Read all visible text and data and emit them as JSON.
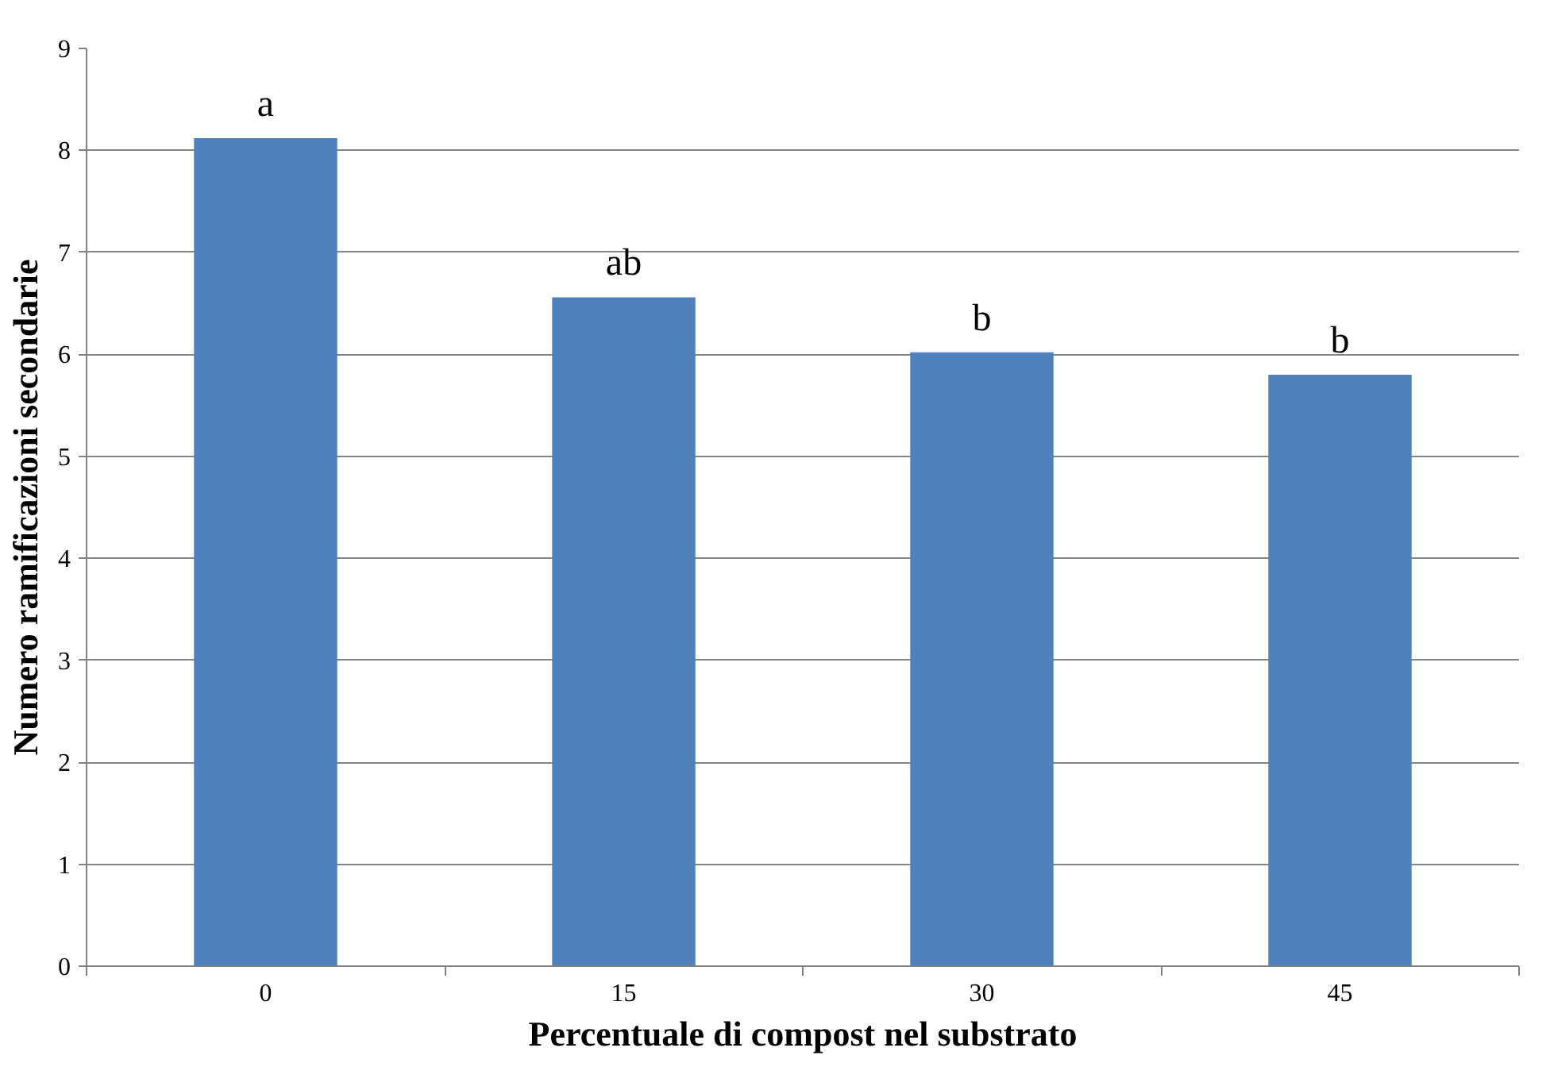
{
  "chart_data": {
    "type": "bar",
    "xlabel": "Percentuale di compost nel substrato",
    "ylabel": "Numero ramificazioni secondarie",
    "categories": [
      "0",
      "15",
      "30",
      "45"
    ],
    "values": [
      8.12,
      6.56,
      6.02,
      5.8
    ],
    "color": "#4f81bd",
    "ylim": [
      0,
      9
    ],
    "yticks": [
      0,
      1,
      2,
      3,
      4,
      5,
      6,
      7,
      8,
      9
    ],
    "grid": "y",
    "annotations": [
      {
        "text": "a",
        "x": "0",
        "y": 8.12
      },
      {
        "text": "ab",
        "x": "15",
        "y": 6.56
      },
      {
        "text": "b",
        "x": "30",
        "y": 6.02
      },
      {
        "text": "b",
        "x": "45",
        "y": 5.8
      }
    ]
  }
}
